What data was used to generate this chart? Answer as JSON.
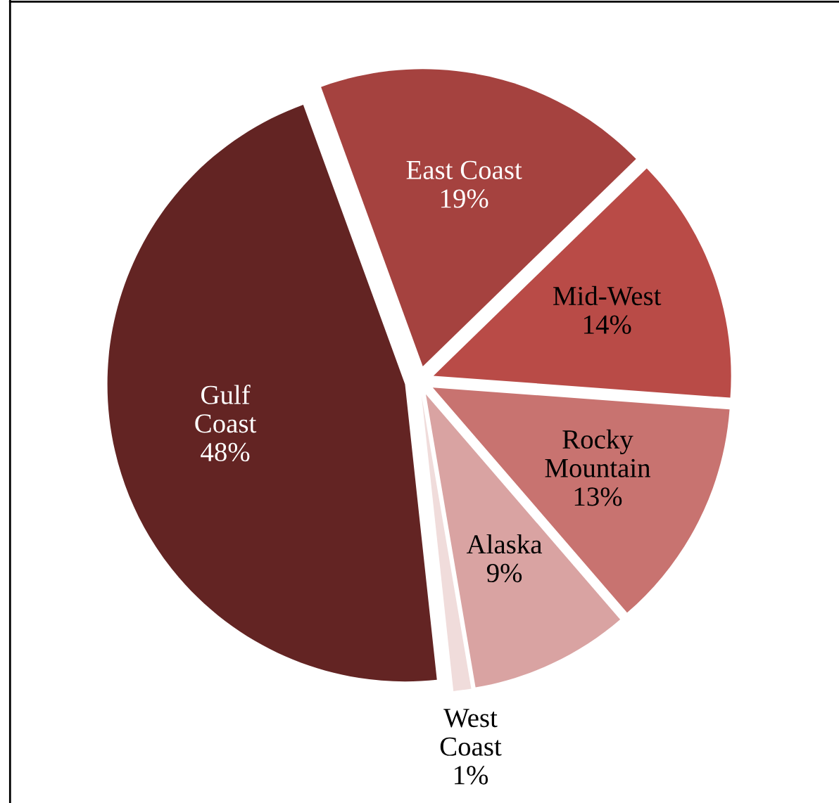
{
  "chart_data": {
    "type": "pie",
    "categories": [
      "East Coast",
      "Mid-West",
      "Rocky Mountain",
      "Alaska",
      "West Coast",
      "Gulf Coast"
    ],
    "value_labels": [
      "19%",
      "14%",
      "13%",
      "9%",
      "1%",
      "48%"
    ],
    "values": [
      19,
      14,
      13,
      9,
      1,
      48
    ],
    "colors": [
      "#a5423f",
      "#b94b47",
      "#c87370",
      "#d9a3a2",
      "#f0dcdb",
      "#632423"
    ],
    "legend": false
  }
}
